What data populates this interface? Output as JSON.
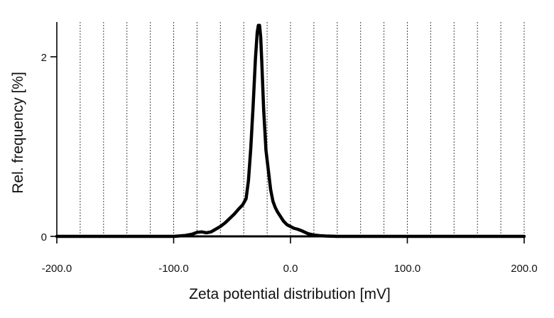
{
  "chart_data": {
    "type": "line",
    "title": "",
    "xlabel": "Zeta potential distribution [mV]",
    "ylabel": "Rel. frequency [%]",
    "xlim": [
      -200,
      200
    ],
    "ylim": [
      0,
      2.4
    ],
    "x_ticks": [
      -200,
      -100,
      0,
      100,
      200
    ],
    "x_tick_labels": [
      "-200.0",
      "-100.0",
      "0.0",
      "100.0",
      "200.0"
    ],
    "y_ticks": [
      0,
      2
    ],
    "y_tick_labels": [
      "0",
      "2"
    ],
    "grid_x": [
      -180,
      -160,
      -140,
      -120,
      -100,
      -80,
      -60,
      -40,
      -20,
      0,
      20,
      40,
      60,
      80,
      100,
      120,
      140,
      160,
      180,
      200
    ],
    "grid_style": "dotted vertical",
    "series": [
      {
        "name": "Zeta potential distribution",
        "color": "#000000",
        "x": [
          -200,
          -100,
          -90,
          -84,
          -80,
          -76,
          -72,
          -68,
          -64,
          -60,
          -56,
          -52,
          -48,
          -44,
          -41,
          -38,
          -36,
          -34,
          -32,
          -30,
          -28.5,
          -27.5,
          -26.5,
          -25.5,
          -24.5,
          -23,
          -21,
          -19,
          -17,
          -15,
          -13,
          -11,
          -9,
          -6,
          -3,
          0,
          3,
          6,
          10,
          15,
          20,
          25,
          30,
          35,
          40,
          60,
          200
        ],
        "values": [
          0,
          0,
          0.01,
          0.025,
          0.045,
          0.05,
          0.04,
          0.05,
          0.08,
          0.11,
          0.15,
          0.2,
          0.25,
          0.31,
          0.35,
          0.42,
          0.62,
          0.98,
          1.45,
          1.98,
          2.27,
          2.35,
          2.35,
          2.22,
          1.92,
          1.42,
          0.96,
          0.74,
          0.52,
          0.39,
          0.32,
          0.27,
          0.23,
          0.17,
          0.13,
          0.11,
          0.09,
          0.08,
          0.06,
          0.03,
          0.015,
          0.008,
          0.004,
          0.002,
          0,
          0,
          0
        ]
      }
    ]
  }
}
